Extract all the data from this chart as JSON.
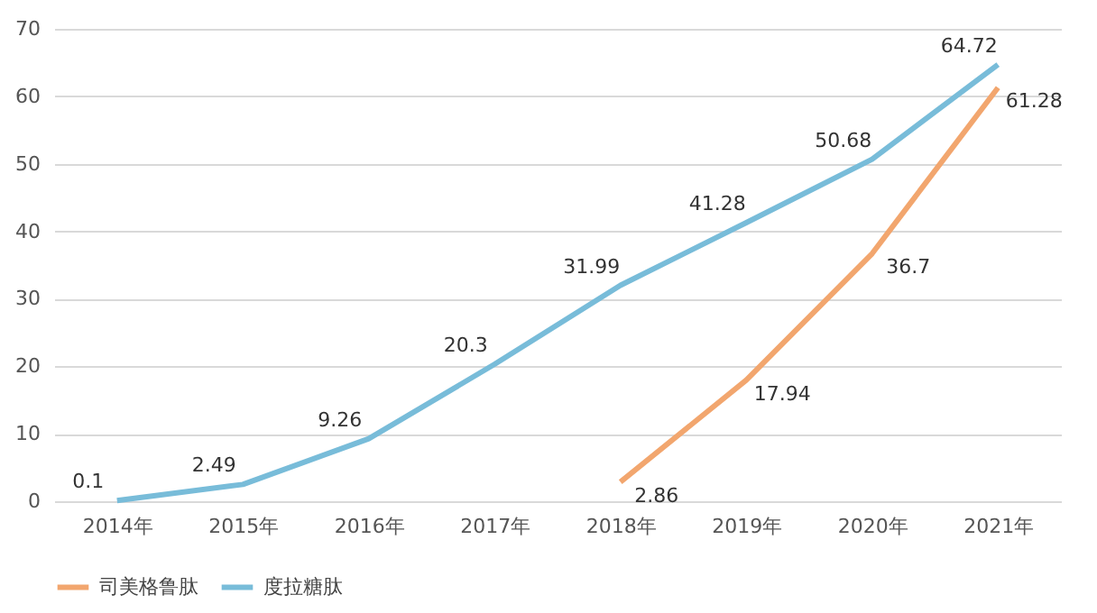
{
  "chart_data": {
    "type": "line",
    "categories": [
      "2014年",
      "2015年",
      "2016年",
      "2017年",
      "2018年",
      "2019年",
      "2020年",
      "2021年"
    ],
    "series": [
      {
        "name": "司美格鲁肽",
        "color": "#f2a66e",
        "values": [
          null,
          null,
          null,
          null,
          2.86,
          17.94,
          36.7,
          61.28
        ]
      },
      {
        "name": "度拉糖肽",
        "color": "#78bcd9",
        "values": [
          0.1,
          2.49,
          9.26,
          20.3,
          31.99,
          41.28,
          50.68,
          64.72
        ]
      }
    ],
    "ylim": [
      0,
      70
    ],
    "yticks": [
      0,
      10,
      20,
      30,
      40,
      50,
      60,
      70
    ],
    "grid": "y",
    "legend": "bottom",
    "data_labels": true,
    "marker": "none",
    "line_style": "solid"
  }
}
